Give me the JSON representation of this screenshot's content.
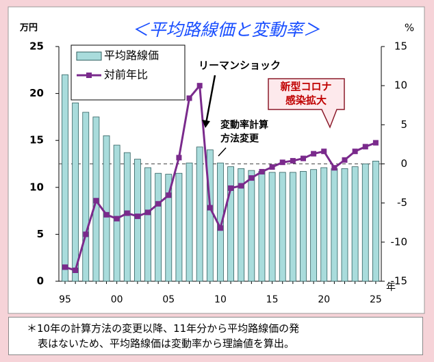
{
  "chart_data": {
    "type": "combo",
    "title": "＜平均路線価と変動率＞",
    "y_unit": "万円",
    "y2_unit": "%",
    "x_unit": "年",
    "categories": [
      "95",
      null,
      null,
      null,
      null,
      "00",
      null,
      null,
      null,
      null,
      "05",
      null,
      null,
      null,
      null,
      "10",
      null,
      null,
      null,
      null,
      "15",
      null,
      null,
      null,
      null,
      "20",
      null,
      null,
      null,
      null,
      "25"
    ],
    "series": [
      {
        "name": "平均路線価",
        "type": "bar",
        "axis": "y",
        "color": "#a9dcdc",
        "values": [
          22,
          19,
          18,
          17.5,
          15.5,
          14.5,
          13.7,
          13,
          12.1,
          11.5,
          11.4,
          11.5,
          12.6,
          14.3,
          14,
          12.6,
          12.2,
          12,
          11.8,
          11.7,
          11.6,
          11.6,
          11.6,
          11.7,
          11.9,
          12.1,
          12,
          12,
          12.2,
          12.5,
          12.8
        ]
      },
      {
        "name": "対前年比",
        "type": "line",
        "axis": "y2",
        "color": "#7a2a8c",
        "values": [
          -13.2,
          -13.6,
          -9,
          -4.7,
          -6.5,
          -7,
          -6.3,
          -6.7,
          -6.2,
          -5.1,
          -4,
          0.8,
          8.4,
          10,
          -5.6,
          -8.2,
          -3.1,
          -2.8,
          -1.8,
          -1,
          -0.4,
          0.2,
          0.4,
          0.7,
          1.3,
          1.6,
          -0.5,
          0.5,
          1.6,
          2.2,
          2.7
        ]
      }
    ],
    "ylim": [
      0,
      25
    ],
    "yticks": [
      0,
      5,
      10,
      15,
      20,
      25
    ],
    "y2lim": [
      -15,
      15
    ],
    "y2ticks": [
      -15,
      -10,
      -5,
      0,
      5,
      10,
      15
    ],
    "legend": "top-left",
    "annotations": {
      "lehman": [
        "リーマンショック"
      ],
      "method": [
        "変動率計算",
        "方法変更"
      ],
      "corona": [
        "新型コロナ",
        "感染拡大"
      ]
    },
    "footnote": [
      "＊10年の計算方法の変更以降、11年分から平均路線価の発",
      "表はないため、平均路線価は変動率から理論値を算出。"
    ]
  }
}
